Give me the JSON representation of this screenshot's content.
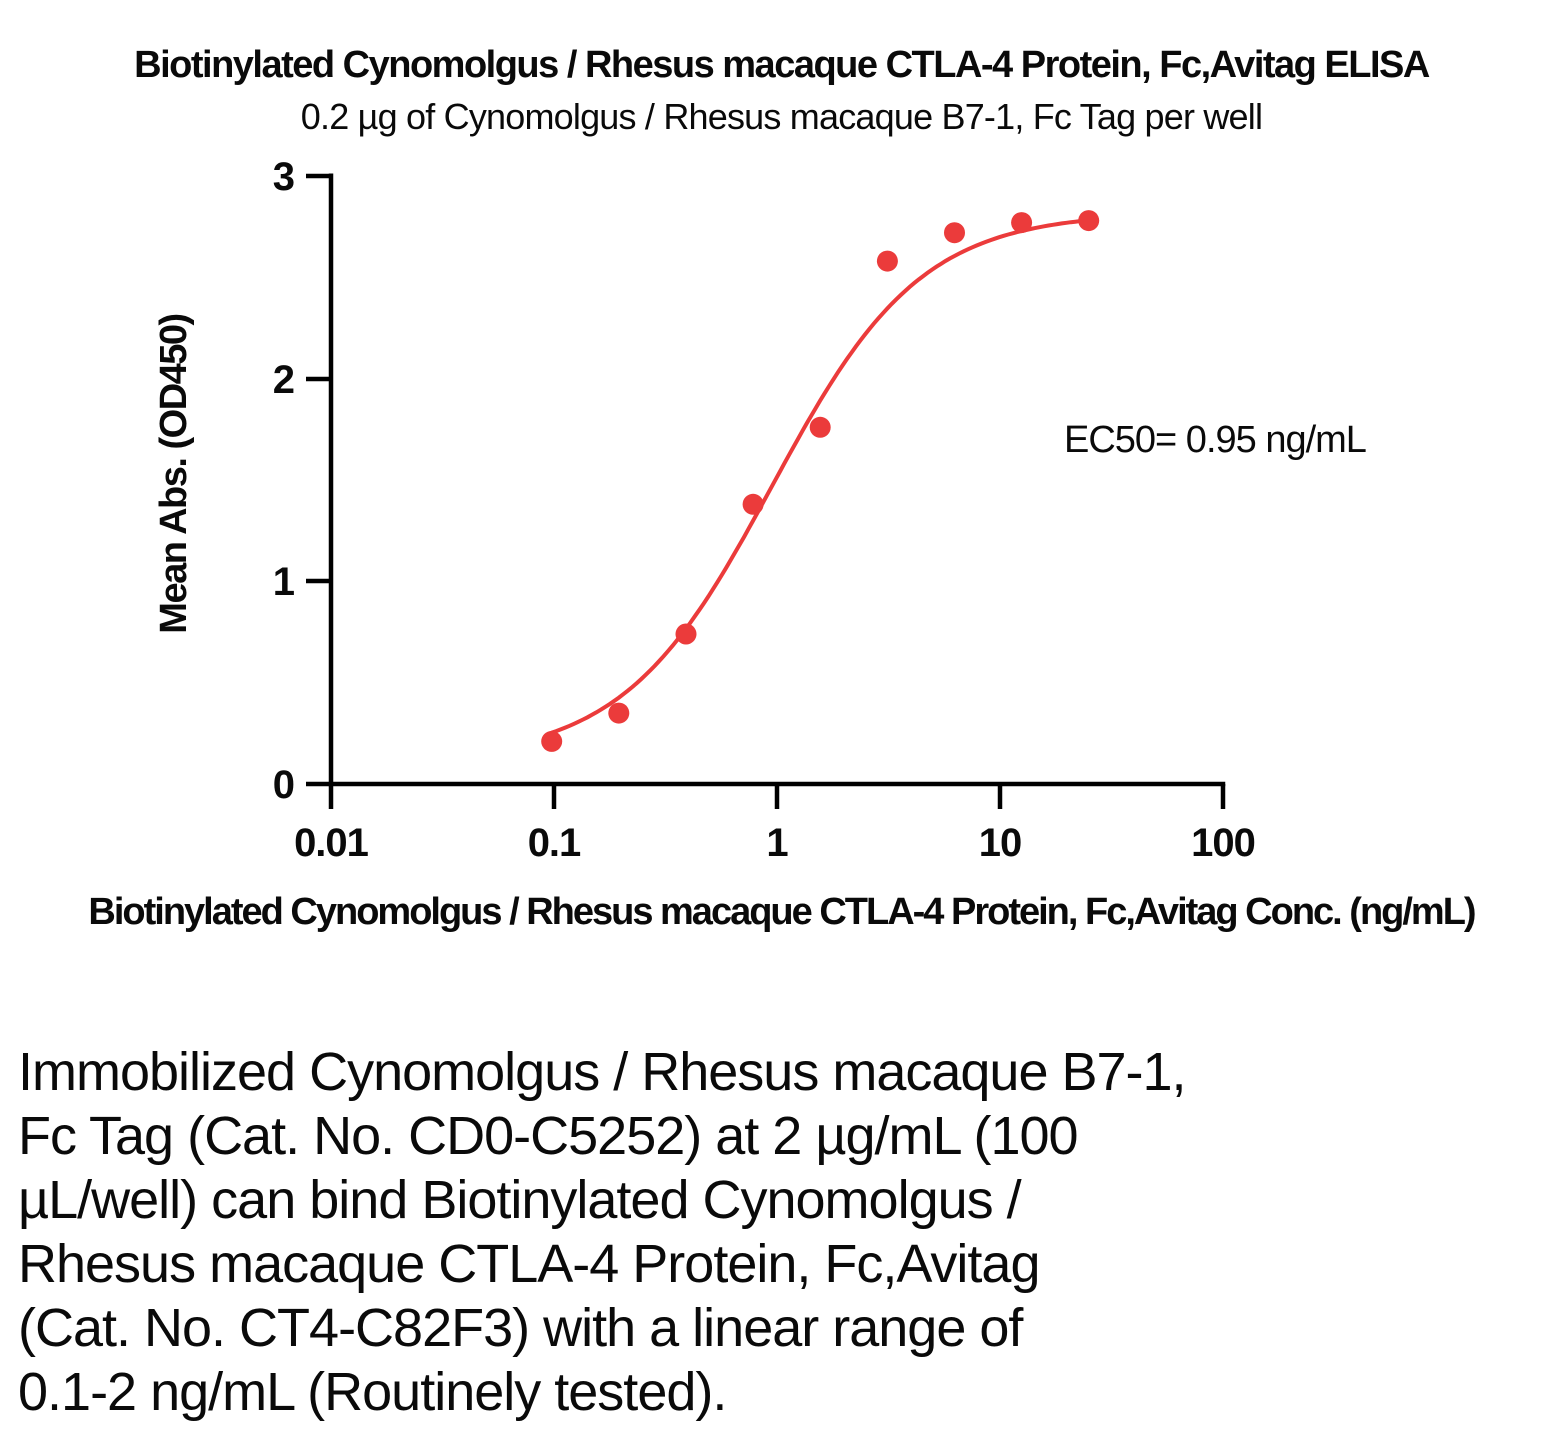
{
  "header": {
    "title": "Biotinylated Cynomolgus / Rhesus macaque CTLA-4 Protein, Fc,Avitag ELISA",
    "subtitle": "0.2 µg of Cynomolgus / Rhesus macaque B7-1, Fc Tag per well"
  },
  "chart_data": {
    "type": "scatter",
    "x_scale": "log10",
    "series_name": "Biotinylated Cynomolgus / Rhesus macaque CTLA-4 Protein, Fc,Avitag",
    "x": [
      0.0977,
      0.1953,
      0.3906,
      0.7813,
      1.5625,
      3.125,
      6.25,
      12.5,
      25
    ],
    "y": [
      0.21,
      0.35,
      0.74,
      1.38,
      1.76,
      2.58,
      2.72,
      2.77,
      2.78
    ],
    "xlabel": "Biotinylated Cynomolgus / Rhesus macaque CTLA-4 Protein, Fc,Avitag Conc. (ng/mL)",
    "ylabel": "Mean Abs. (OD450)",
    "xlim": [
      0.01,
      100
    ],
    "ylim": [
      0,
      3
    ],
    "x_tick_labels": [
      "0.01",
      "0.1",
      "1",
      "10",
      "100"
    ],
    "y_tick_labels": [
      "0",
      "1",
      "2",
      "3"
    ],
    "grid": false,
    "legend": "none",
    "annotation": "EC50= 0.95 ng/mL",
    "ec50_ng_ml": 0.95,
    "curve_fit": {
      "model": "4PL",
      "bottom": 0.12,
      "top": 2.82,
      "ec50": 0.95,
      "hill": 1.3
    },
    "colors": {
      "points": "#EB3B3B",
      "curve": "#EB3B3B",
      "axis": "#000000"
    }
  },
  "description": {
    "lines": [
      "Immobilized Cynomolgus / Rhesus macaque B7-1,",
      "Fc Tag (Cat. No. CD0-C5252) at 2 µg/mL (100",
      "µL/well) can bind Biotinylated Cynomolgus /",
      "Rhesus macaque CTLA-4 Protein, Fc,Avitag",
      "(Cat. No. CT4-C82F3) with a linear range of",
      "0.1-2 ng/mL (Routinely tested)."
    ]
  }
}
